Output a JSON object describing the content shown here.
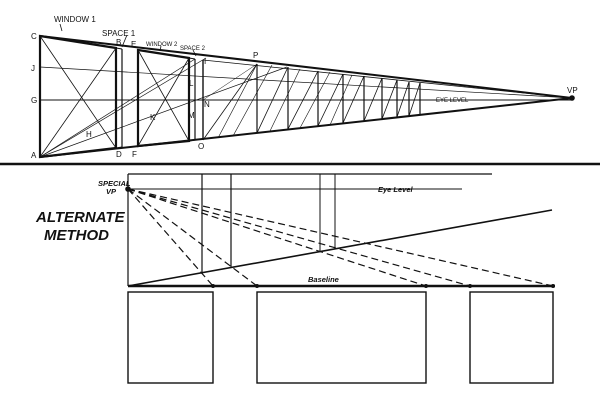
{
  "top_diagram": {
    "title_window1": "WINDOW 1",
    "title_space1": "SPACE 1",
    "title_window2": "WINDOW 2",
    "title_space2": "SPACE 2",
    "eye_level": "EYE LEVEL",
    "vp": "VP",
    "points": {
      "C": "C",
      "J": "J",
      "G": "G",
      "A": "A",
      "H": "H",
      "B": "B",
      "D": "D",
      "E": "E",
      "F": "F",
      "K": "K",
      "L": "L",
      "M": "M",
      "N": "N",
      "I": "I",
      "O": "O",
      "P": "P"
    }
  },
  "bottom_diagram": {
    "title_line1": "ALTERNATE",
    "title_line2": "METHOD",
    "special_vp_line1": "SPECIAL",
    "special_vp_line2": "VP",
    "eye_level": "Eye Level",
    "baseline": "Baseline"
  }
}
